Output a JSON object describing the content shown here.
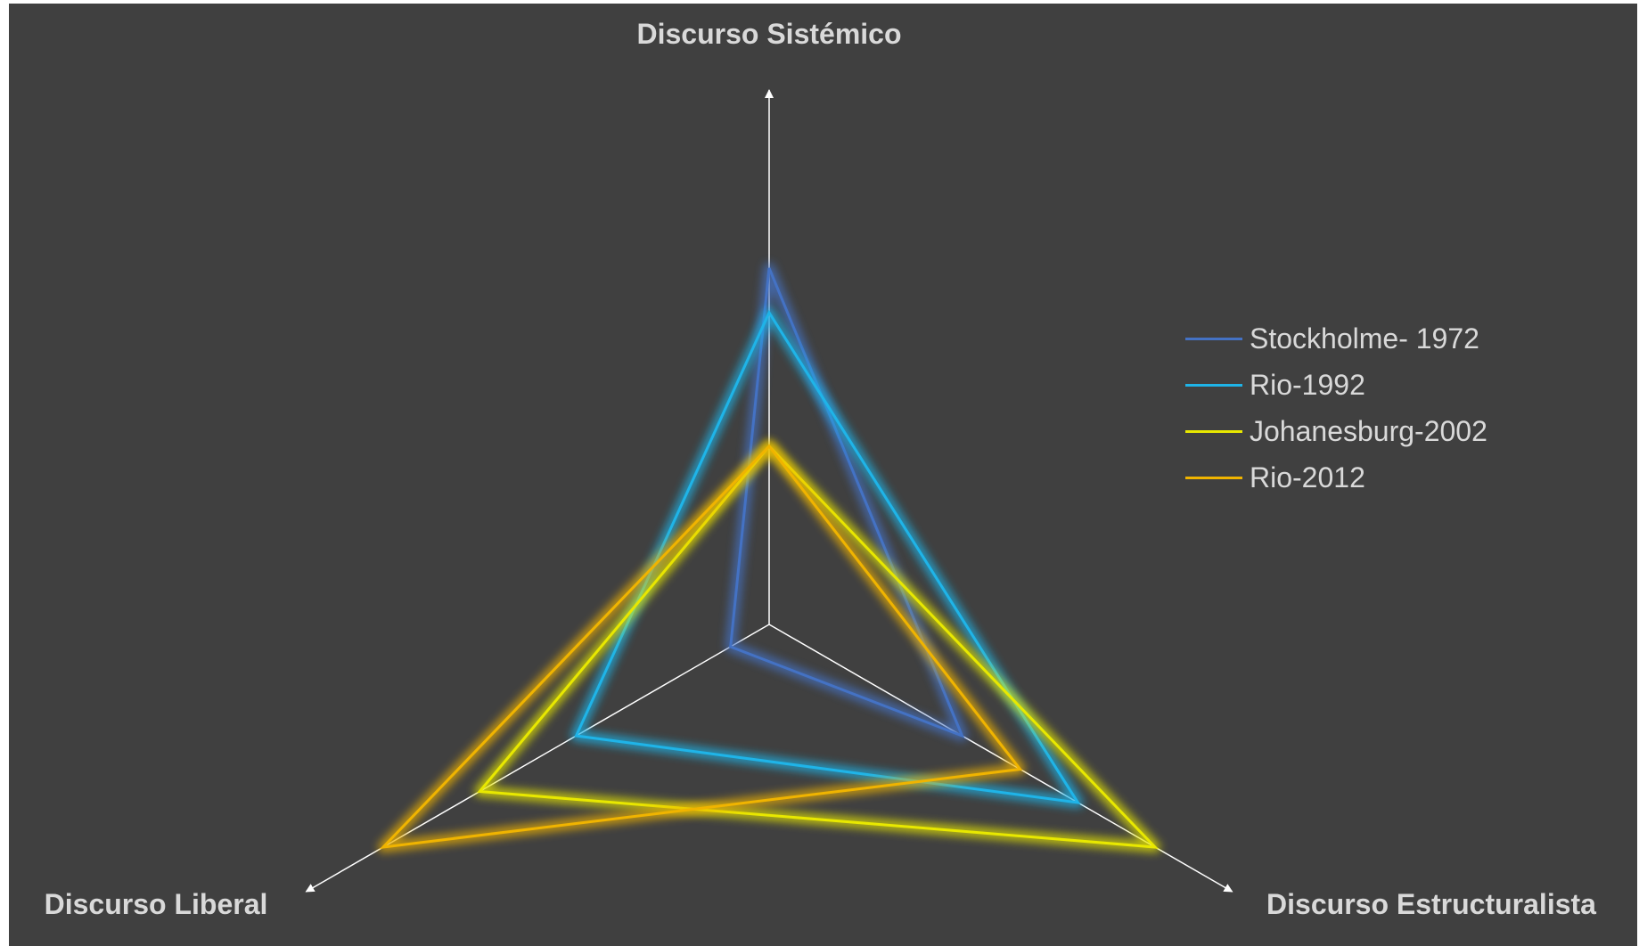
{
  "chart_data": {
    "type": "radar",
    "axes": [
      "Discurso Sistémico",
      "Discurso Estructuralista",
      "Discurso Liberal"
    ],
    "max": 10,
    "series": [
      {
        "name": "Stockholme- 1972",
        "color": "#4472c4",
        "values": [
          8,
          5,
          1
        ]
      },
      {
        "name": "Rio-1992",
        "color": "#1fb4e8",
        "values": [
          7,
          8,
          5
        ]
      },
      {
        "name": "Johanesburg-2002",
        "color": "#e8e800",
        "values": [
          4,
          10,
          7.5
        ]
      },
      {
        "name": "Rio-2012",
        "color": "#f0b400",
        "values": [
          4,
          6.5,
          10
        ]
      }
    ],
    "legend_position": "right",
    "background": "#404040",
    "axis_color": "#ffffff",
    "label_color": "#d9d9d9"
  }
}
